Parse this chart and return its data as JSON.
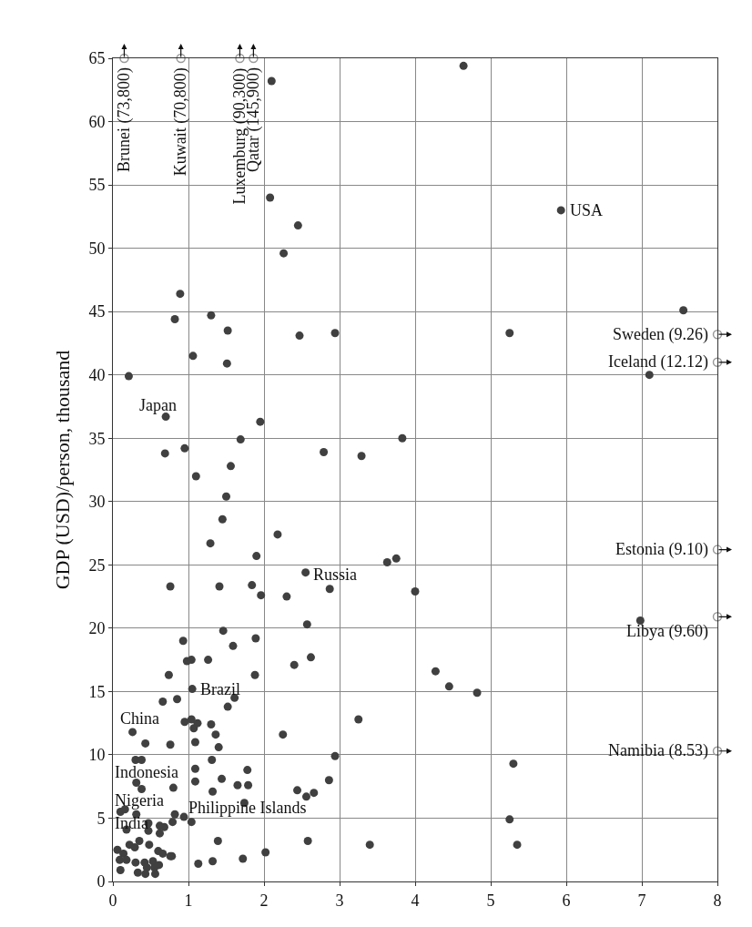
{
  "chart_data": {
    "type": "scatter",
    "ylabel": "GDP (USD)/person, thousand",
    "xlim": [
      0,
      8
    ],
    "ylim": [
      0,
      65
    ],
    "xticks": [
      0,
      1,
      2,
      3,
      4,
      5,
      6,
      7,
      8
    ],
    "yticks": [
      0,
      5,
      10,
      15,
      20,
      25,
      30,
      35,
      40,
      45,
      50,
      55,
      60,
      65
    ],
    "grid": true,
    "marker": "circle",
    "series": [
      {
        "color": "#404040",
        "x": [
          2.1,
          4.64,
          2.08,
          2.45,
          2.26,
          5.93,
          0.89,
          0.82,
          1.3,
          1.52,
          2.47,
          2.94,
          5.25,
          7.55,
          1.06,
          1.51,
          0.21,
          7.1,
          0.7,
          1.95,
          1.69,
          3.83,
          0.69,
          0.95,
          2.79,
          3.29,
          1.56,
          1.1,
          1.5,
          1.45,
          2.18,
          1.29,
          1.9,
          3.63,
          3.75,
          2.55,
          0.76,
          1.41,
          1.84,
          1.96,
          2.3,
          2.87,
          4.0,
          1.46,
          2.57,
          0.93,
          1.89,
          1.59,
          0.98,
          1.04,
          1.26,
          2.4,
          2.62,
          0.74,
          1.88,
          1.05,
          0.66,
          0.85,
          1.61,
          1.52,
          6.98,
          4.27,
          4.45,
          4.82,
          3.25,
          0.26,
          0.95,
          1.04,
          1.12,
          1.07,
          1.3,
          1.36,
          2.25,
          0.43,
          0.76,
          1.09,
          1.4,
          2.94,
          0.3,
          0.38,
          1.31,
          1.09,
          1.78,
          0.31,
          1.09,
          1.44,
          2.86,
          0.38,
          0.8,
          1.32,
          1.65,
          1.79,
          2.44,
          2.66,
          2.56,
          1.74,
          0.1,
          0.16,
          0.31,
          0.82,
          0.94,
          0.79,
          1.04,
          0.47,
          0.62,
          0.68,
          0.18,
          0.47,
          0.62,
          1.39,
          2.58,
          3.4,
          2.02,
          0.22,
          0.35,
          0.29,
          0.48,
          0.6,
          0.66,
          0.76,
          0.78,
          0.06,
          0.14,
          0.09,
          0.18,
          0.3,
          0.42,
          0.53,
          0.61,
          0.45,
          0.55,
          0.1,
          0.33,
          0.43,
          0.56,
          1.13,
          1.32,
          1.72,
          5.3,
          5.25,
          5.35
        ],
        "values": [
          63.2,
          64.4,
          54.0,
          51.8,
          49.6,
          53.0,
          46.4,
          44.4,
          44.7,
          43.5,
          43.1,
          43.3,
          43.3,
          45.1,
          41.5,
          40.9,
          39.9,
          40.0,
          36.7,
          36.3,
          34.9,
          35.0,
          33.8,
          34.2,
          33.9,
          33.6,
          32.8,
          32.0,
          30.4,
          28.6,
          27.4,
          26.7,
          25.7,
          25.2,
          25.5,
          24.4,
          23.3,
          23.3,
          23.4,
          22.6,
          22.5,
          23.1,
          22.9,
          19.8,
          20.3,
          19.0,
          19.2,
          18.6,
          17.4,
          17.5,
          17.5,
          17.1,
          17.7,
          16.3,
          16.3,
          15.2,
          14.2,
          14.4,
          14.5,
          13.8,
          20.6,
          16.6,
          15.4,
          14.9,
          12.8,
          11.8,
          12.6,
          12.8,
          12.5,
          12.1,
          12.4,
          11.6,
          11.6,
          10.9,
          10.8,
          11.0,
          10.6,
          9.9,
          9.6,
          9.6,
          9.6,
          8.9,
          8.8,
          7.8,
          7.9,
          8.1,
          8.0,
          7.3,
          7.4,
          7.1,
          7.6,
          7.6,
          7.2,
          7.0,
          6.7,
          6.2,
          5.5,
          5.7,
          5.3,
          5.3,
          5.1,
          4.7,
          4.7,
          4.6,
          4.4,
          4.3,
          4.1,
          4.0,
          3.8,
          3.2,
          3.2,
          2.9,
          2.3,
          2.9,
          3.2,
          2.7,
          2.9,
          2.4,
          2.2,
          2.0,
          2.0,
          2.5,
          2.2,
          1.7,
          1.7,
          1.5,
          1.5,
          1.6,
          1.3,
          1.1,
          1.1,
          0.9,
          0.7,
          0.6,
          0.6,
          1.4,
          1.6,
          1.8,
          9.3,
          4.9,
          2.9
        ]
      }
    ],
    "annotations": [
      {
        "text": "USA",
        "x": 6.03,
        "y": 53.0
      },
      "Japan",
      {
        "text": "Russia",
        "x": 2.63,
        "y": 24.2
      },
      {
        "text": "Brazil",
        "x": 1.13,
        "y": 15.2
      },
      "China",
      "Indonesia",
      "Nigeria",
      "India",
      "Philippine Islands",
      {
        "text": "Brunei (73,800)",
        "x": 0.15,
        "y": 65
      },
      {
        "text": "Kuwait (70,800)",
        "x": 0.9,
        "y": 65
      },
      {
        "text": "Luxemburg (90,300)",
        "x": 1.68,
        "y": 65
      },
      {
        "text": "Qatar (145,900)",
        "x": 1.86,
        "y": 65
      },
      {
        "text": "Sweden (9.26)",
        "x": 8,
        "y": 43.2
      },
      {
        "text": "Iceland (12.12)",
        "x": 8,
        "y": 41.0
      },
      {
        "text": "Estonia (9.10)",
        "x": 8,
        "y": 26.2
      },
      {
        "text": "Libya (9.60)",
        "x": 8,
        "y": 20.9
      },
      {
        "text": "Namibia (8.53)",
        "x": 8,
        "y": 10.3
      }
    ]
  }
}
